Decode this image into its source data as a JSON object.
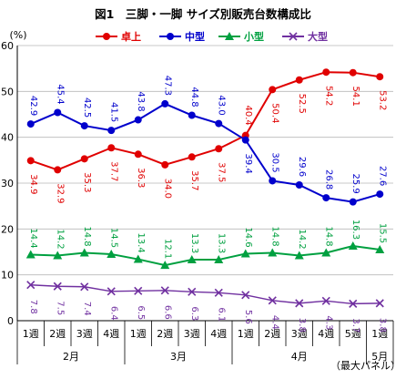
{
  "chart_data": {
    "type": "line",
    "title": "図1　三脚・一脚 サイズ別販売台数構成比",
    "ylabel_unit": "(%)",
    "note": "（最大パネル）",
    "ylim": [
      0,
      60
    ],
    "yticks": [
      "0",
      "10",
      "20",
      "30",
      "40",
      "50",
      "60"
    ],
    "grid": true,
    "legend_position": "top",
    "categories": [
      "1週",
      "2週",
      "3週",
      "4週",
      "1週",
      "2週",
      "3週",
      "4週",
      "1週",
      "2週",
      "3週",
      "4週",
      "5週",
      "1週"
    ],
    "month_groups": [
      {
        "label": "2月",
        "count": 4
      },
      {
        "label": "3月",
        "count": 4
      },
      {
        "label": "4月",
        "count": 5
      },
      {
        "label": "5月",
        "count": 1
      }
    ],
    "series": [
      {
        "name": "卓上",
        "color": "#e00000",
        "marker": "circle",
        "values": [
          34.9,
          32.9,
          35.3,
          37.7,
          36.3,
          34.0,
          35.7,
          37.5,
          40.4,
          50.4,
          52.5,
          54.2,
          54.1,
          53.2
        ],
        "labels": [
          "34.9",
          "32.9",
          "35.3",
          "37.7",
          "36.3",
          "34.0",
          "35.7",
          "37.5",
          "40.4",
          "50.4",
          "52.5",
          "54.2",
          "54.1",
          "53.2"
        ]
      },
      {
        "name": "中型",
        "color": "#0000cc",
        "marker": "circle",
        "values": [
          42.9,
          45.4,
          42.5,
          41.5,
          43.8,
          47.3,
          44.8,
          43.0,
          39.4,
          30.5,
          29.6,
          26.8,
          25.9,
          27.6
        ],
        "labels": [
          "42.9",
          "45.4",
          "42.5",
          "41.5",
          "43.8",
          "47.3",
          "44.8",
          "43.0",
          "39.4",
          "30.5",
          "29.6",
          "26.8",
          "25.9",
          "27.6"
        ]
      },
      {
        "name": "小型",
        "color": "#00a040",
        "marker": "triangle",
        "values": [
          14.4,
          14.2,
          14.8,
          14.5,
          13.4,
          12.1,
          13.3,
          13.3,
          14.6,
          14.8,
          14.2,
          14.8,
          16.3,
          15.5
        ],
        "labels": [
          "14.4",
          "14.2",
          "14.8",
          "14.5",
          "13.4",
          "12.1",
          "13.3",
          "13.3",
          "14.6",
          "14.8",
          "14.2",
          "14.8",
          "16.3",
          "15.5"
        ]
      },
      {
        "name": "大型",
        "color": "#7030a0",
        "marker": "x",
        "values": [
          7.8,
          7.5,
          7.4,
          6.4,
          6.5,
          6.6,
          6.3,
          6.1,
          5.6,
          4.4,
          3.8,
          4.3,
          3.7,
          3.8
        ],
        "labels": [
          "7.8",
          "7.5",
          "7.4",
          "6.4",
          "6.5",
          "6.6",
          "6.3",
          "6.1",
          "5.6",
          "4.4",
          "3.8",
          "4.3",
          "3.7",
          "3.8"
        ]
      }
    ]
  }
}
